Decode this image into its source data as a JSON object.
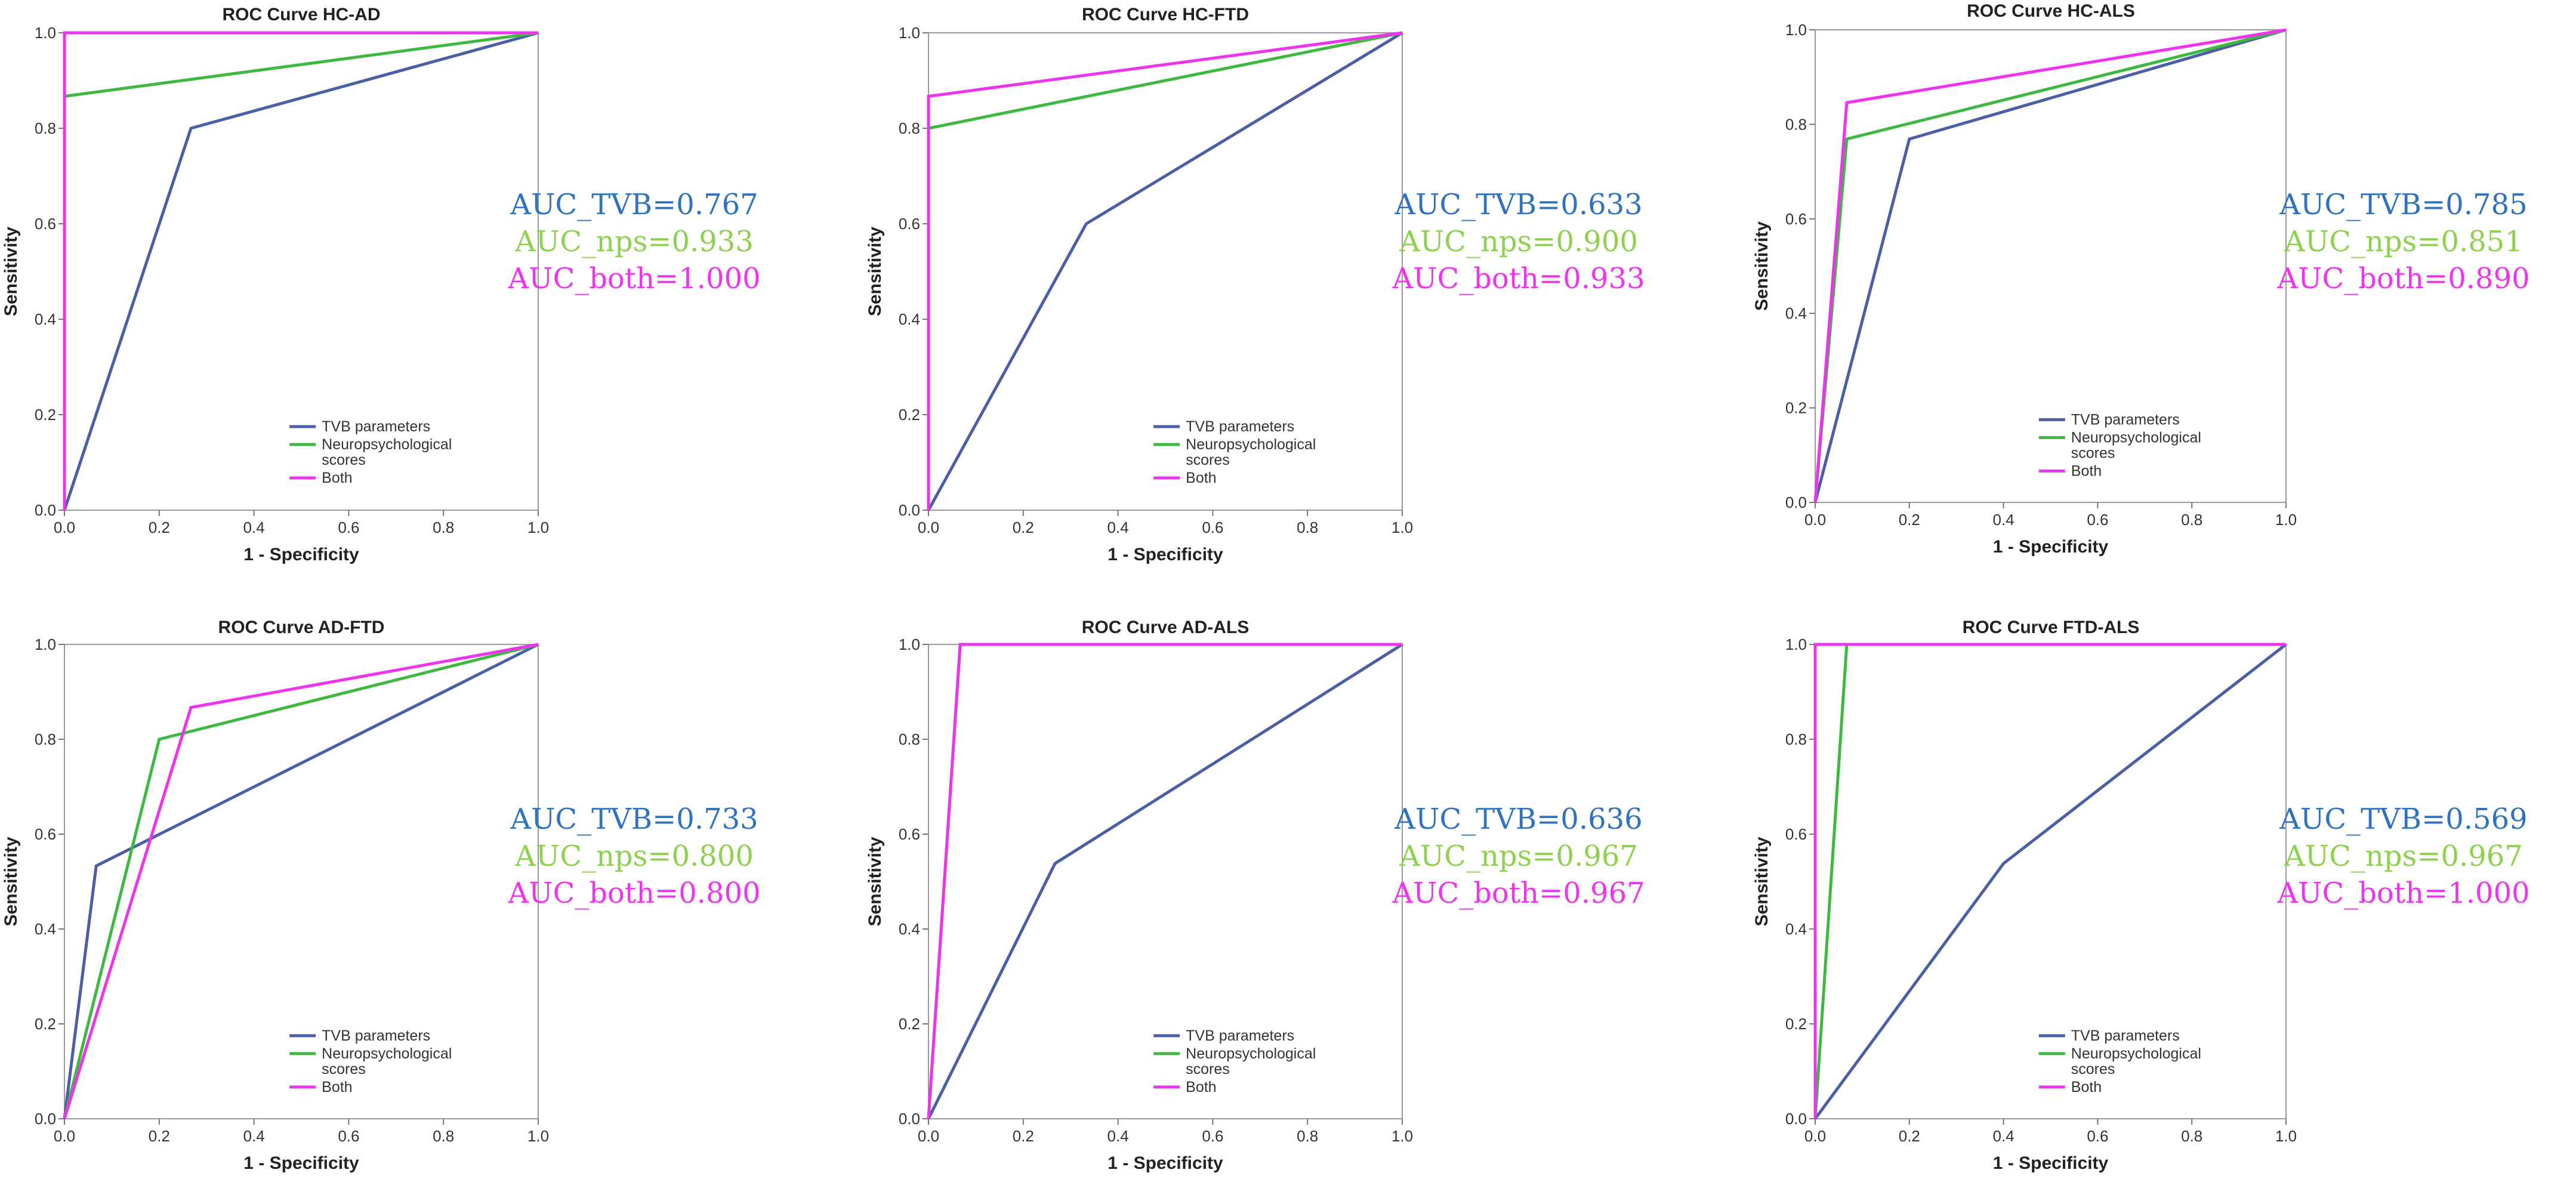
{
  "colors": {
    "tvb": "#4a5fa5",
    "nps": "#3fb83f",
    "both": "#ee33ee",
    "auc_tvb": "#2f72c0",
    "auc_nps": "#8dd14f",
    "auc_both": "#ee33ee"
  },
  "chart_data": [
    {
      "type": "line",
      "title": "ROC Curve HC-AD",
      "xlabel": "1 - Specificity",
      "ylabel": "Sensitivity",
      "xlim": [
        0,
        1
      ],
      "ylim": [
        0,
        1
      ],
      "xticks": [
        "0.0",
        "0.2",
        "0.4",
        "0.6",
        "0.8",
        "1.0"
      ],
      "yticks": [
        "0.0",
        "0.2",
        "0.4",
        "0.6",
        "0.8",
        "1.0"
      ],
      "legend": [
        "TVB parameters",
        "Neuropsychological scores",
        "Both"
      ],
      "legend_lines": [
        [
          "TVB parameters"
        ],
        [
          "Neuropsychological",
          "scores"
        ],
        [
          "Both"
        ]
      ],
      "series": [
        {
          "name": "TVB parameters",
          "key": "tvb",
          "points": [
            [
              0,
              0
            ],
            [
              0.267,
              0.8
            ],
            [
              1,
              1
            ]
          ]
        },
        {
          "name": "Neuropsychological scores",
          "key": "nps",
          "points": [
            [
              0,
              0
            ],
            [
              0,
              0.867
            ],
            [
              1,
              1
            ]
          ]
        },
        {
          "name": "Both",
          "key": "both",
          "points": [
            [
              0,
              0
            ],
            [
              0,
              1
            ],
            [
              1,
              1
            ]
          ]
        }
      ],
      "auc": [
        "AUC_TVB=0.767",
        "AUC_nps=0.933",
        "AUC_both=1.000"
      ]
    },
    {
      "type": "line",
      "title": "ROC Curve HC-FTD",
      "xlabel": "1 - Specificity",
      "ylabel": "Sensitivity",
      "xlim": [
        0,
        1
      ],
      "ylim": [
        0,
        1
      ],
      "xticks": [
        "0.0",
        "0.2",
        "0.4",
        "0.6",
        "0.8",
        "1.0"
      ],
      "yticks": [
        "0.0",
        "0.2",
        "0.4",
        "0.6",
        "0.8",
        "1.0"
      ],
      "legend": [
        "TVB parameters",
        "Neuropsychological scores",
        "Both"
      ],
      "legend_lines": [
        [
          "TVB parameters"
        ],
        [
          "Neuropsychological",
          "scores"
        ],
        [
          "Both"
        ]
      ],
      "series": [
        {
          "name": "TVB parameters",
          "key": "tvb",
          "points": [
            [
              0,
              0
            ],
            [
              0.333,
              0.6
            ],
            [
              1,
              1
            ]
          ]
        },
        {
          "name": "Neuropsychological scores",
          "key": "nps",
          "points": [
            [
              0,
              0
            ],
            [
              0,
              0.8
            ],
            [
              1,
              1
            ]
          ]
        },
        {
          "name": "Both",
          "key": "both",
          "points": [
            [
              0,
              0
            ],
            [
              0,
              0.867
            ],
            [
              1,
              1
            ]
          ]
        }
      ],
      "auc": [
        "AUC_TVB=0.633",
        "AUC_nps=0.900",
        "AUC_both=0.933"
      ]
    },
    {
      "type": "line",
      "title": "ROC Curve HC-ALS",
      "xlabel": "1 - Specificity",
      "ylabel": "Sensitivity",
      "xlim": [
        0,
        1
      ],
      "ylim": [
        0,
        1
      ],
      "xticks": [
        "0.0",
        "0.2",
        "0.4",
        "0.6",
        "0.8",
        "1.0"
      ],
      "yticks": [
        "0.0",
        "0.2",
        "0.4",
        "0.6",
        "0.8",
        "1.0"
      ],
      "legend": [
        "TVB parameters",
        "Neuropsychological scores",
        "Both"
      ],
      "legend_lines": [
        [
          "TVB parameters"
        ],
        [
          "Neuropsychological",
          "scores"
        ],
        [
          "Both"
        ]
      ],
      "series": [
        {
          "name": "TVB parameters",
          "key": "tvb",
          "points": [
            [
              0,
              0
            ],
            [
              0.2,
              0.769
            ],
            [
              1,
              1
            ]
          ]
        },
        {
          "name": "Neuropsychological scores",
          "key": "nps",
          "points": [
            [
              0,
              0
            ],
            [
              0.067,
              0.769
            ],
            [
              1,
              1
            ]
          ]
        },
        {
          "name": "Both",
          "key": "both",
          "points": [
            [
              0,
              0
            ],
            [
              0.067,
              0.846
            ],
            [
              1,
              1
            ]
          ]
        }
      ],
      "auc": [
        "AUC_TVB=0.785",
        "AUC_nps=0.851",
        "AUC_both=0.890"
      ]
    },
    {
      "type": "line",
      "title": "ROC Curve AD-FTD",
      "xlabel": "1 - Specificity",
      "ylabel": "Sensitivity",
      "xlim": [
        0,
        1
      ],
      "ylim": [
        0,
        1
      ],
      "xticks": [
        "0.0",
        "0.2",
        "0.4",
        "0.6",
        "0.8",
        "1.0"
      ],
      "yticks": [
        "0.0",
        "0.2",
        "0.4",
        "0.6",
        "0.8",
        "1.0"
      ],
      "legend": [
        "TVB parameters",
        "Neuropsychological scores",
        "Both"
      ],
      "legend_lines": [
        [
          "TVB parameters"
        ],
        [
          "Neuropsychological",
          "scores"
        ],
        [
          "Both"
        ]
      ],
      "series": [
        {
          "name": "TVB parameters",
          "key": "tvb",
          "points": [
            [
              0,
              0
            ],
            [
              0.067,
              0.533
            ],
            [
              1,
              1
            ]
          ]
        },
        {
          "name": "Neuropsychological scores",
          "key": "nps",
          "points": [
            [
              0,
              0
            ],
            [
              0.2,
              0.8
            ],
            [
              1,
              1
            ]
          ]
        },
        {
          "name": "Both",
          "key": "both",
          "points": [
            [
              0,
              0
            ],
            [
              0.267,
              0.867
            ],
            [
              1,
              1
            ]
          ]
        }
      ],
      "auc": [
        "AUC_TVB=0.733",
        "AUC_nps=0.800",
        "AUC_both=0.800"
      ]
    },
    {
      "type": "line",
      "title": "ROC Curve AD-ALS",
      "xlabel": "1 - Specificity",
      "ylabel": "Sensitivity",
      "xlim": [
        0,
        1
      ],
      "ylim": [
        0,
        1
      ],
      "xticks": [
        "0.0",
        "0.2",
        "0.4",
        "0.6",
        "0.8",
        "1.0"
      ],
      "yticks": [
        "0.0",
        "0.2",
        "0.4",
        "0.6",
        "0.8",
        "1.0"
      ],
      "legend": [
        "TVB parameters",
        "Neuropsychological scores",
        "Both"
      ],
      "legend_lines": [
        [
          "TVB parameters"
        ],
        [
          "Neuropsychological",
          "scores"
        ],
        [
          "Both"
        ]
      ],
      "series": [
        {
          "name": "TVB parameters",
          "key": "tvb",
          "points": [
            [
              0,
              0
            ],
            [
              0.267,
              0.538
            ],
            [
              1,
              1
            ]
          ]
        },
        {
          "name": "Neuropsychological scores",
          "key": "nps",
          "points": [
            [
              0,
              0
            ],
            [
              0.067,
              1
            ],
            [
              1,
              1
            ]
          ]
        },
        {
          "name": "Both",
          "key": "both",
          "points": [
            [
              0,
              0
            ],
            [
              0.067,
              1
            ],
            [
              1,
              1
            ]
          ]
        }
      ],
      "auc": [
        "AUC_TVB=0.636",
        "AUC_nps=0.967",
        "AUC_both=0.967"
      ]
    },
    {
      "type": "line",
      "title": "ROC Curve FTD-ALS",
      "xlabel": "1 - Specificity",
      "ylabel": "Sensitivity",
      "xlim": [
        0,
        1
      ],
      "ylim": [
        0,
        1
      ],
      "xticks": [
        "0.0",
        "0.2",
        "0.4",
        "0.6",
        "0.8",
        "1.0"
      ],
      "yticks": [
        "0.0",
        "0.2",
        "0.4",
        "0.6",
        "0.8",
        "1.0"
      ],
      "legend": [
        "TVB parameters",
        "Neuropsychological scores",
        "Both"
      ],
      "legend_lines": [
        [
          "TVB parameters"
        ],
        [
          "Neuropsychological",
          "scores"
        ],
        [
          "Both"
        ]
      ],
      "series": [
        {
          "name": "TVB parameters",
          "key": "tvb",
          "points": [
            [
              0,
              0
            ],
            [
              0.4,
              0.538
            ],
            [
              1,
              1
            ]
          ]
        },
        {
          "name": "Neuropsychological scores",
          "key": "nps",
          "points": [
            [
              0,
              0
            ],
            [
              0.067,
              1
            ],
            [
              1,
              1
            ]
          ]
        },
        {
          "name": "Both",
          "key": "both",
          "points": [
            [
              0,
              0
            ],
            [
              0,
              1
            ],
            [
              1,
              1
            ]
          ]
        }
      ],
      "auc": [
        "AUC_TVB=0.569",
        "AUC_nps=0.967",
        "AUC_both=1.000"
      ]
    }
  ]
}
